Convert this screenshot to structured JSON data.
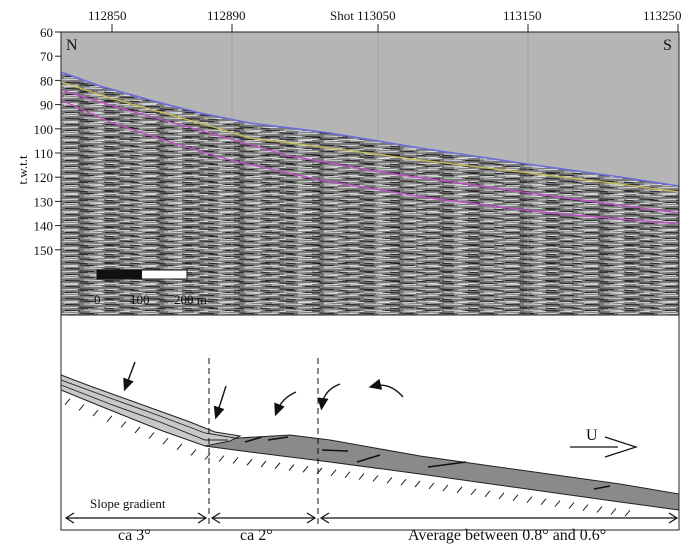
{
  "profile": {
    "shot_labels": [
      "112850",
      "112890",
      "Shot 113050",
      "113150",
      "113250"
    ],
    "y_axis_label": "t.w.t.t",
    "y_ticks": [
      "60",
      "70",
      "80",
      "90",
      "100",
      "110",
      "120",
      "130",
      "140",
      "150"
    ],
    "direction_left": "N",
    "direction_right": "S",
    "scale_bar": {
      "labels": [
        "0",
        "100",
        "200 m"
      ]
    }
  },
  "sketch": {
    "flow_label": "U",
    "slope_gradient_label": "Slope gradient",
    "segments": [
      "ca 3°",
      "ca 2°",
      "Average between 0.8° and 0.6°"
    ]
  },
  "colors": {
    "water": "#b5b5b5",
    "seafloor_line": "#6d6be0",
    "yellow_horizon": "#c8c050",
    "magenta_horizon": "#c050c8",
    "deposit_fill": "#8a8a8a",
    "upper_wedge_fill": "#c8c8c8"
  }
}
